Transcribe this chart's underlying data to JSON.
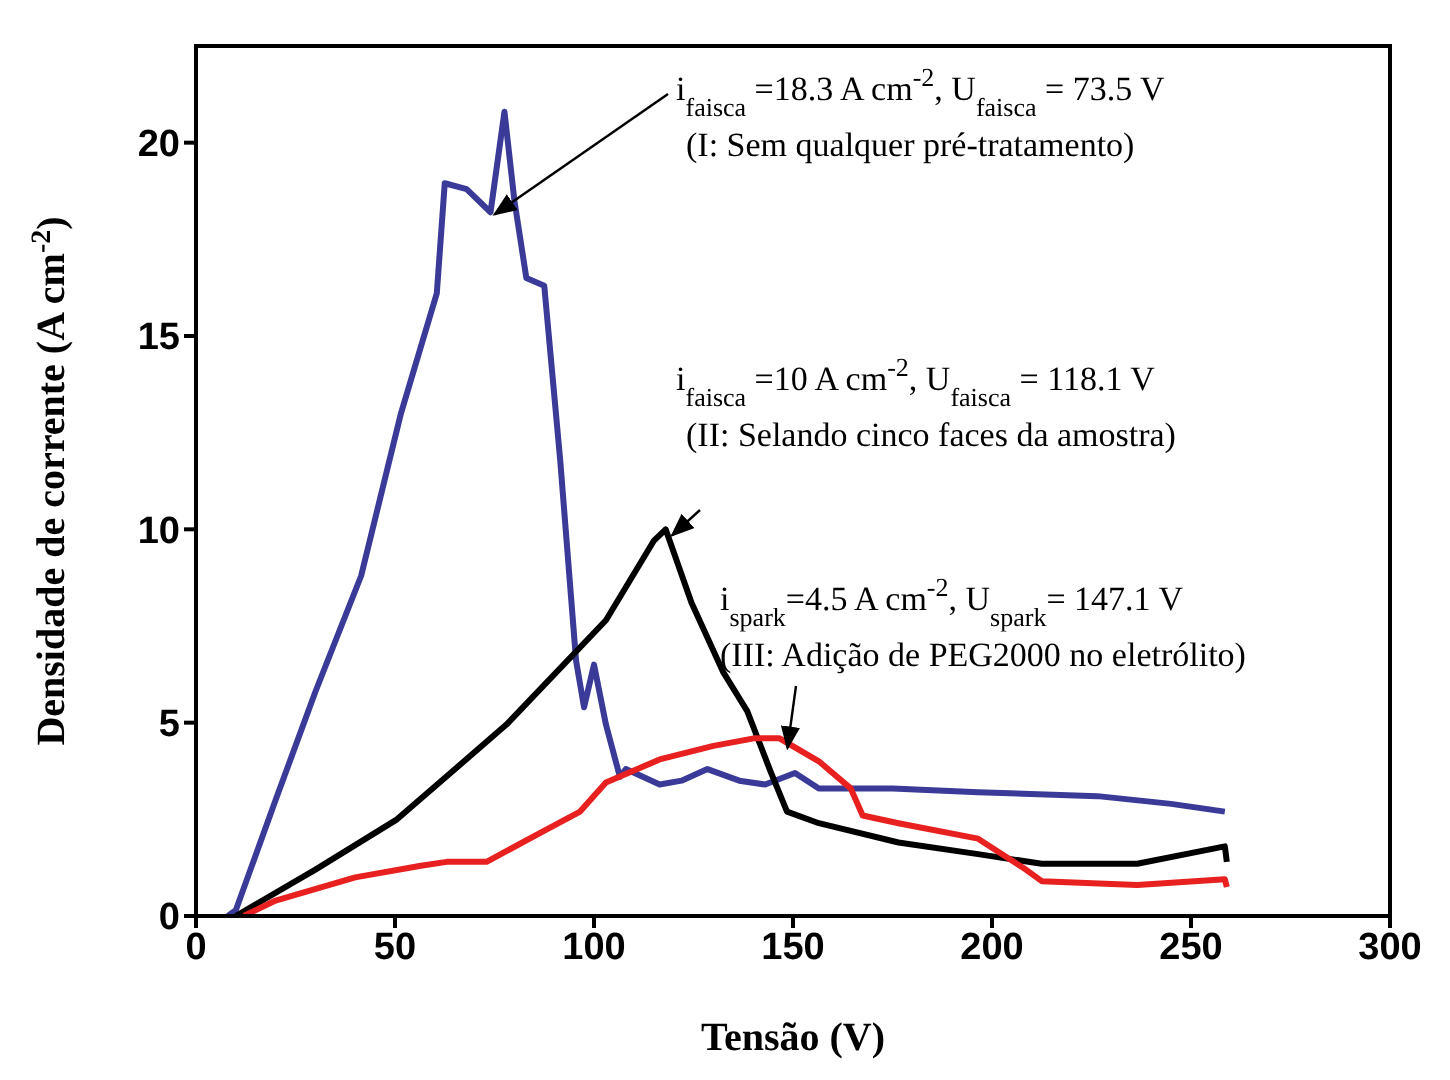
{
  "chart_data": {
    "type": "line",
    "xlabel": "Tensão (V)",
    "ylabel": "Densidade de corrente  (A cm$^{-2}$)",
    "xlim": [
      0,
      300
    ],
    "ylim": [
      0,
      22.5
    ],
    "xticks": [
      0,
      50,
      100,
      150,
      200,
      250,
      300
    ],
    "yticks": [
      0,
      5,
      10,
      15,
      20
    ],
    "series": [
      {
        "color": "#3a3a98",
        "x": [
          8,
          10,
          20,
          30,
          41.5,
          51.5,
          60.5,
          62.5,
          68,
          74,
          77.5,
          80,
          83,
          87.5,
          91.5,
          95.5,
          97.5,
          100,
          103,
          106.5,
          108,
          116.5,
          122,
          128.5,
          136.5,
          143,
          150.5,
          156.5,
          175,
          196.5,
          226.5,
          245,
          258.5
        ],
        "values": [
          0,
          0.15,
          3,
          5.8,
          8.8,
          13,
          16.1,
          18.95,
          18.8,
          18.2,
          20.8,
          18.5,
          16.5,
          16.3,
          11.8,
          6.6,
          5.4,
          6.5,
          4.95,
          3.6,
          3.8,
          3.4,
          3.5,
          3.8,
          3.5,
          3.4,
          3.7,
          3.3,
          3.3,
          3.2,
          3.1,
          2.9,
          2.7
        ]
      },
      {
        "color": "#000000",
        "x": [
          10,
          30,
          50.5,
          78,
          103,
          115,
          118,
          124.5,
          132.5,
          138.5,
          144.5,
          148.5,
          156.5,
          176.5,
          196.5,
          212.5,
          236.5,
          258.5,
          259
        ],
        "values": [
          0,
          1.2,
          2.5,
          4.95,
          7.65,
          9.7,
          10,
          8.1,
          6.3,
          5.3,
          3.7,
          2.7,
          2.4,
          1.9,
          1.6,
          1.35,
          1.35,
          1.8,
          1.4
        ]
      },
      {
        "color": "#e8201f",
        "x": [
          12,
          20,
          40,
          56.5,
          63,
          73,
          86.5,
          96.5,
          103,
          116.5,
          130,
          140.5,
          146.5,
          156.5,
          164.5,
          167.5,
          176.5,
          196.5,
          208.5,
          212.5,
          236.5,
          258.5,
          259
        ],
        "values": [
          0,
          0.4,
          1,
          1.3,
          1.4,
          1.4,
          2.15,
          2.7,
          3.45,
          4.05,
          4.4,
          4.6,
          4.6,
          4,
          3.3,
          2.6,
          2.4,
          2,
          1.2,
          0.9,
          0.8,
          0.95,
          0.75
        ]
      }
    ],
    "annotations": [
      {
        "text": "i$_{faisca}$ =18.3 A cm$^{-2}$, U$_{faisca}$ = 73.5 V\n(I: Sem qualquer pré-tratamento)",
        "x": 73.5,
        "y": 18.3
      },
      {
        "text": "i$_{faisca}$ =10 A cm$^{-2}$, U$_{faisca}$ = 118.1 V\n(II: Selando cinco faces da amostra)",
        "x": 118.1,
        "y": 10
      },
      {
        "text": "i$_{spark}$=4.5 A cm$^{-2}$, U$_{spark}$= 147.1 V\n(III: Adição de PEG2000 no eletrólito)",
        "x": 147.1,
        "y": 4.5
      }
    ]
  }
}
